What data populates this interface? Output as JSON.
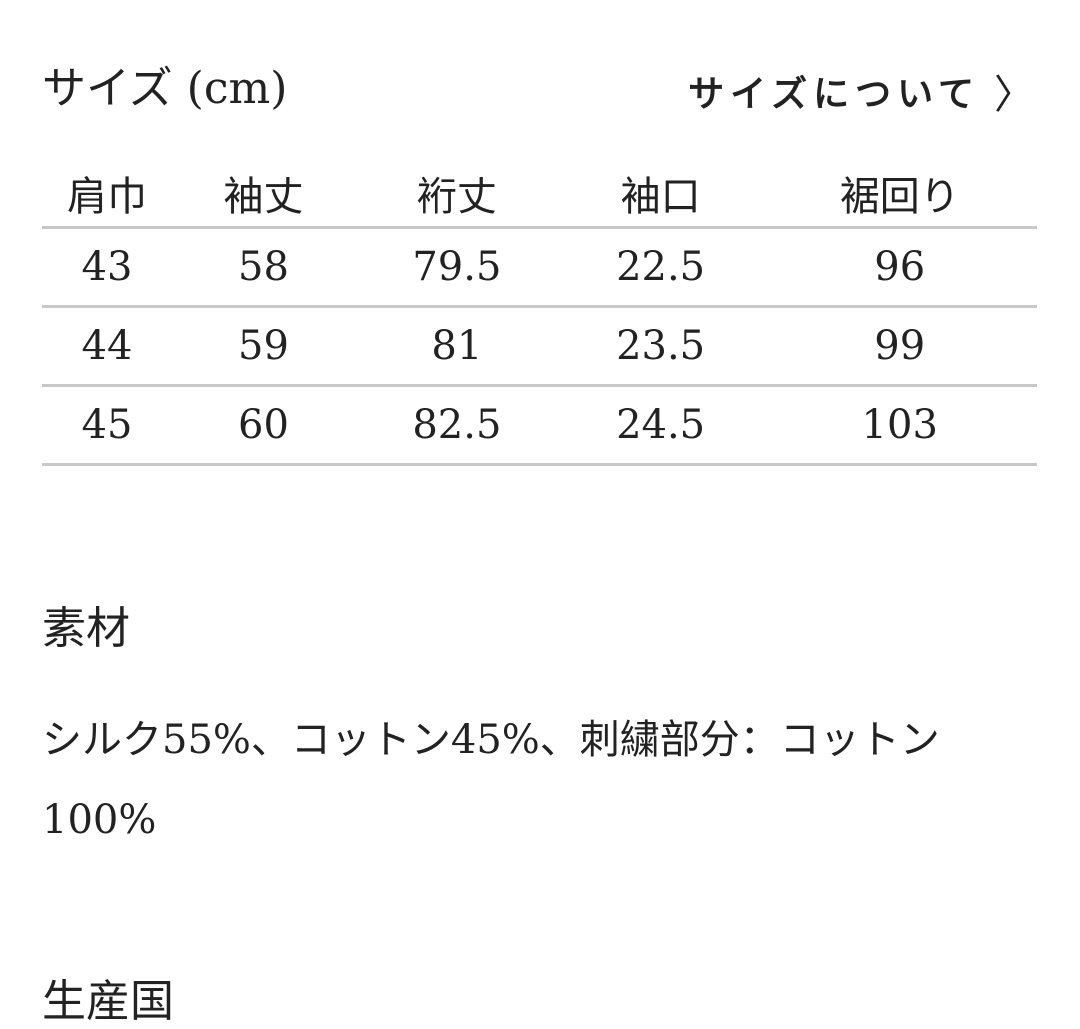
{
  "size": {
    "title": "サイズ (cm)",
    "link_label": "サイズについて",
    "link_icon": "chevron-right-icon",
    "headers": [
      "肩巾",
      "袖丈",
      "裄丈",
      "袖口",
      "裾回り"
    ],
    "rows": [
      [
        "43",
        "58",
        "79.5",
        "22.5",
        "96"
      ],
      [
        "44",
        "59",
        "81",
        "23.5",
        "99"
      ],
      [
        "45",
        "60",
        "82.5",
        "24.5",
        "103"
      ]
    ]
  },
  "material": {
    "title": "素材",
    "text": "シルク55%、コットン45%、刺繍部分：コットン100%"
  },
  "next_section": {
    "title": "生産国"
  }
}
